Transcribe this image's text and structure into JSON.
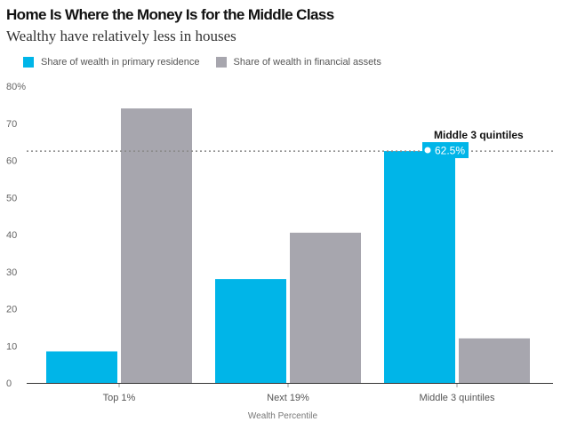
{
  "chart_data": {
    "type": "bar",
    "title": "Home Is Where the Money Is for the Middle Class",
    "subtitle": "Wealthy have relatively less in houses",
    "categories": [
      "Top 1%",
      "Next 19%",
      "Middle 3 quintiles"
    ],
    "series": [
      {
        "name": "Share of wealth in primary residence",
        "values": [
          8.5,
          28.0,
          62.5
        ],
        "color": "#00b5e8"
      },
      {
        "name": "Share of wealth in financial assets",
        "values": [
          74.0,
          40.5,
          12.0
        ],
        "color": "#a7a6ae"
      }
    ],
    "xlabel": "Wealth Percentile",
    "ylabel": "",
    "ylim": [
      0,
      80
    ],
    "yticks": [
      0,
      10,
      20,
      30,
      40,
      50,
      60,
      70,
      80
    ],
    "ytick_labels": [
      "0",
      "10",
      "20",
      "30",
      "40",
      "50",
      "60",
      "70",
      "80%"
    ],
    "reference_line": {
      "value": 62.5,
      "label": "Middle 3 quintiles",
      "badge": "62.5%",
      "style": "dotted"
    },
    "grid": false,
    "legend_position": "top-left"
  }
}
